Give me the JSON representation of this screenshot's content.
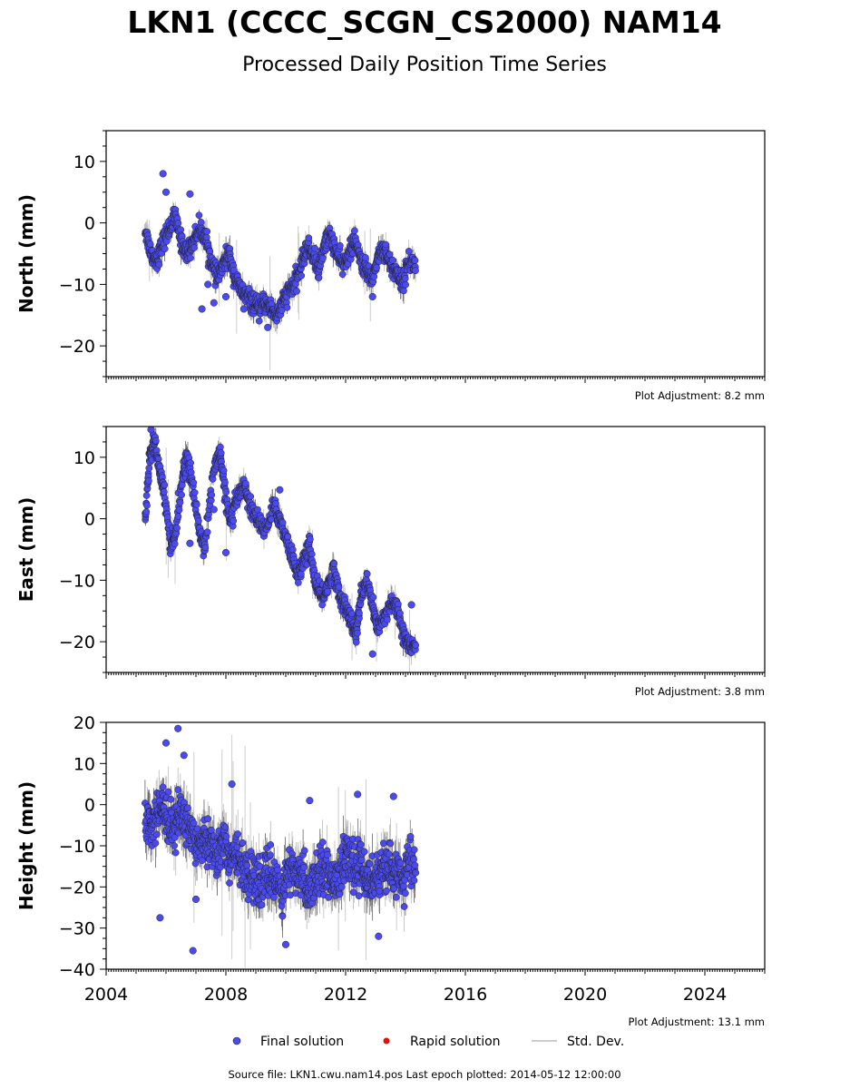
{
  "title": "LKN1 (CCCC_SCGN_CS2000) NAM14",
  "subtitle": "Processed Daily Position Time Series",
  "footer": "Source file: LKN1.cwu.nam14.pos  Last epoch plotted: 2014-05-12 12:00:00",
  "colors": {
    "final": "#4a4af0",
    "rapid": "#e01010",
    "stddev": "#bbbbbb",
    "errbar_dark": "#555555"
  },
  "legend": {
    "final": "Final solution",
    "rapid": "Rapid solution",
    "stddev": "Std. Dev."
  },
  "chart_data": [
    {
      "type": "scatter",
      "ylabel": "North (mm)",
      "adjustment": "Plot Adjustment: 8.2 mm",
      "xlim": [
        2004.0,
        2026.0
      ],
      "ylim": [
        -25,
        15
      ],
      "yticks": [
        -20,
        -10,
        0,
        10
      ],
      "xticks": [
        2004,
        2008,
        2012,
        2016,
        2020,
        2024
      ],
      "series": [
        {
          "x": [
            2005.3,
            2005.5,
            2005.7,
            2005.9,
            2006.1,
            2006.3,
            2006.5,
            2006.7,
            2006.9,
            2007.1,
            2007.3,
            2007.5,
            2007.7,
            2007.9,
            2008.1,
            2008.3,
            2008.5,
            2008.7,
            2008.9,
            2009.1,
            2009.3,
            2009.5,
            2009.7,
            2009.9,
            2010.1,
            2010.3,
            2010.5,
            2010.7,
            2010.9,
            2011.1,
            2011.3,
            2011.5,
            2011.7,
            2011.9,
            2012.1,
            2012.3,
            2012.5,
            2012.7,
            2012.9,
            2013.1,
            2013.3,
            2013.5,
            2013.7,
            2013.9,
            2014.1,
            2014.35
          ],
          "y": [
            -1,
            -5,
            -6,
            -3,
            -1,
            1,
            -3,
            -5,
            -3,
            -1,
            -2,
            -6,
            -9,
            -7,
            -5,
            -9,
            -11,
            -12,
            -13,
            -14,
            -13,
            -14,
            -15,
            -13,
            -11,
            -10,
            -7,
            -4,
            -5,
            -8,
            -3,
            -2,
            -5,
            -7,
            -5,
            -3,
            -6,
            -8,
            -9,
            -5,
            -4,
            -7,
            -8,
            -10,
            -6,
            -7
          ]
        },
        {
          "x": [
            2005.9,
            2006.0,
            2006.8,
            2007.2,
            2007.4,
            2007.6,
            2008.0,
            2008.6,
            2009.4,
            2012.9
          ],
          "y": [
            8,
            5,
            4.7,
            -14,
            -10,
            -13,
            -12,
            -14,
            -17,
            -12
          ]
        }
      ]
    },
    {
      "type": "scatter",
      "ylabel": "East (mm)",
      "adjustment": "Plot Adjustment: 3.8 mm",
      "xlim": [
        2004.0,
        2026.0
      ],
      "ylim": [
        -25,
        15
      ],
      "yticks": [
        -20,
        -10,
        0,
        10
      ],
      "xticks": [
        2004,
        2008,
        2012,
        2016,
        2020,
        2024
      ],
      "series": [
        {
          "x": [
            2005.3,
            2005.45,
            2005.6,
            2005.8,
            2005.95,
            2006.15,
            2006.3,
            2006.55,
            2006.7,
            2006.9,
            2007.15,
            2007.3,
            2007.6,
            2007.8,
            2007.95,
            2008.15,
            2008.35,
            2008.6,
            2008.8,
            2009.05,
            2009.3,
            2009.6,
            2009.8,
            2010.0,
            2010.2,
            2010.4,
            2010.6,
            2010.8,
            2011.0,
            2011.2,
            2011.4,
            2011.6,
            2011.8,
            2012.0,
            2012.2,
            2012.35,
            2012.5,
            2012.7,
            2012.9,
            2013.05,
            2013.3,
            2013.55,
            2013.75,
            2013.95,
            2014.15,
            2014.35
          ],
          "y": [
            0,
            10,
            13,
            8,
            4,
            -4,
            -3,
            7,
            10,
            5,
            -3,
            -4,
            8,
            11,
            5,
            -1,
            3,
            6,
            2,
            0,
            -2,
            2,
            0,
            -3,
            -6,
            -9,
            -7,
            -4,
            -11,
            -13,
            -11,
            -8,
            -13,
            -14,
            -17,
            -19,
            -13,
            -10,
            -14,
            -18,
            -16,
            -13,
            -15,
            -19,
            -21,
            -21
          ]
        },
        {
          "x": [
            2005.5,
            2006.8,
            2007.6,
            2008.0,
            2009.8,
            2012.9,
            2014.2
          ],
          "y": [
            14.5,
            -4,
            1.5,
            -5.5,
            4.7,
            -22,
            -14
          ]
        }
      ]
    },
    {
      "type": "scatter",
      "ylabel": "Height (mm)",
      "adjustment": "Plot Adjustment: 13.1 mm",
      "xlim": [
        2004.0,
        2026.0
      ],
      "ylim": [
        -40,
        20
      ],
      "yticks": [
        -40,
        -30,
        -20,
        -10,
        0,
        10,
        20
      ],
      "xticks": [
        2004,
        2008,
        2012,
        2016,
        2020,
        2024
      ],
      "series": [
        {
          "x": [
            2005.3,
            2005.5,
            2005.7,
            2005.9,
            2006.1,
            2006.3,
            2006.5,
            2006.7,
            2006.9,
            2007.1,
            2007.3,
            2007.5,
            2007.7,
            2007.9,
            2008.1,
            2008.3,
            2008.5,
            2008.7,
            2008.9,
            2009.1,
            2009.3,
            2009.5,
            2009.7,
            2009.9,
            2010.1,
            2010.3,
            2010.5,
            2010.7,
            2010.9,
            2011.1,
            2011.3,
            2011.5,
            2011.7,
            2011.9,
            2012.1,
            2012.3,
            2012.5,
            2012.7,
            2012.9,
            2013.1,
            2013.3,
            2013.5,
            2013.7,
            2013.9,
            2014.1,
            2014.35
          ],
          "y": [
            -3,
            -5,
            -2,
            0,
            -6,
            -4,
            -2,
            -5,
            -7,
            -9,
            -8,
            -10,
            -12,
            -9,
            -13,
            -12,
            -15,
            -17,
            -16,
            -20,
            -18,
            -17,
            -19,
            -21,
            -16,
            -18,
            -17,
            -20,
            -19,
            -16,
            -15,
            -18,
            -17,
            -15,
            -13,
            -16,
            -14,
            -18,
            -17,
            -19,
            -15,
            -17,
            -16,
            -18,
            -14,
            -15
          ]
        },
        {
          "x": [
            2006.0,
            2006.4,
            2006.6,
            2006.9,
            2008.2,
            2010.0,
            2010.8,
            2012.4,
            2013.1,
            2013.6,
            2005.8,
            2007.0
          ],
          "y": [
            15,
            18.5,
            12,
            -35.5,
            5,
            -34,
            1,
            2.5,
            -32,
            2,
            -27.5,
            -23
          ]
        }
      ]
    }
  ]
}
